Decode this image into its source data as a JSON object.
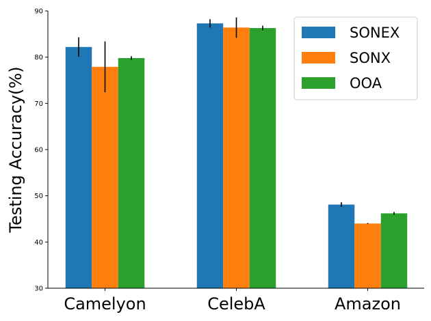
{
  "chart_data": {
    "type": "bar",
    "title": "",
    "xlabel": "",
    "ylabel": "Testing Accuracy(%)",
    "categories": [
      "Camelyon",
      "CelebA",
      "Amazon"
    ],
    "ylim": [
      30,
      90
    ],
    "yticks": [
      30,
      40,
      50,
      60,
      70,
      80,
      90
    ],
    "grid": false,
    "legend_position": "top-right",
    "series": [
      {
        "name": "SONEX",
        "color": "#1f77b4",
        "values": [
          82.2,
          87.3,
          48.1
        ],
        "errors": [
          2.1,
          0.9,
          0.5
        ]
      },
      {
        "name": "SONX",
        "color": "#ff7f0e",
        "values": [
          77.9,
          86.4,
          44.0
        ],
        "errors": [
          5.5,
          2.2,
          0.1
        ]
      },
      {
        "name": "OOA",
        "color": "#2ca02c",
        "values": [
          79.8,
          86.3,
          46.2
        ],
        "errors": [
          0.4,
          0.5,
          0.3
        ]
      }
    ]
  }
}
